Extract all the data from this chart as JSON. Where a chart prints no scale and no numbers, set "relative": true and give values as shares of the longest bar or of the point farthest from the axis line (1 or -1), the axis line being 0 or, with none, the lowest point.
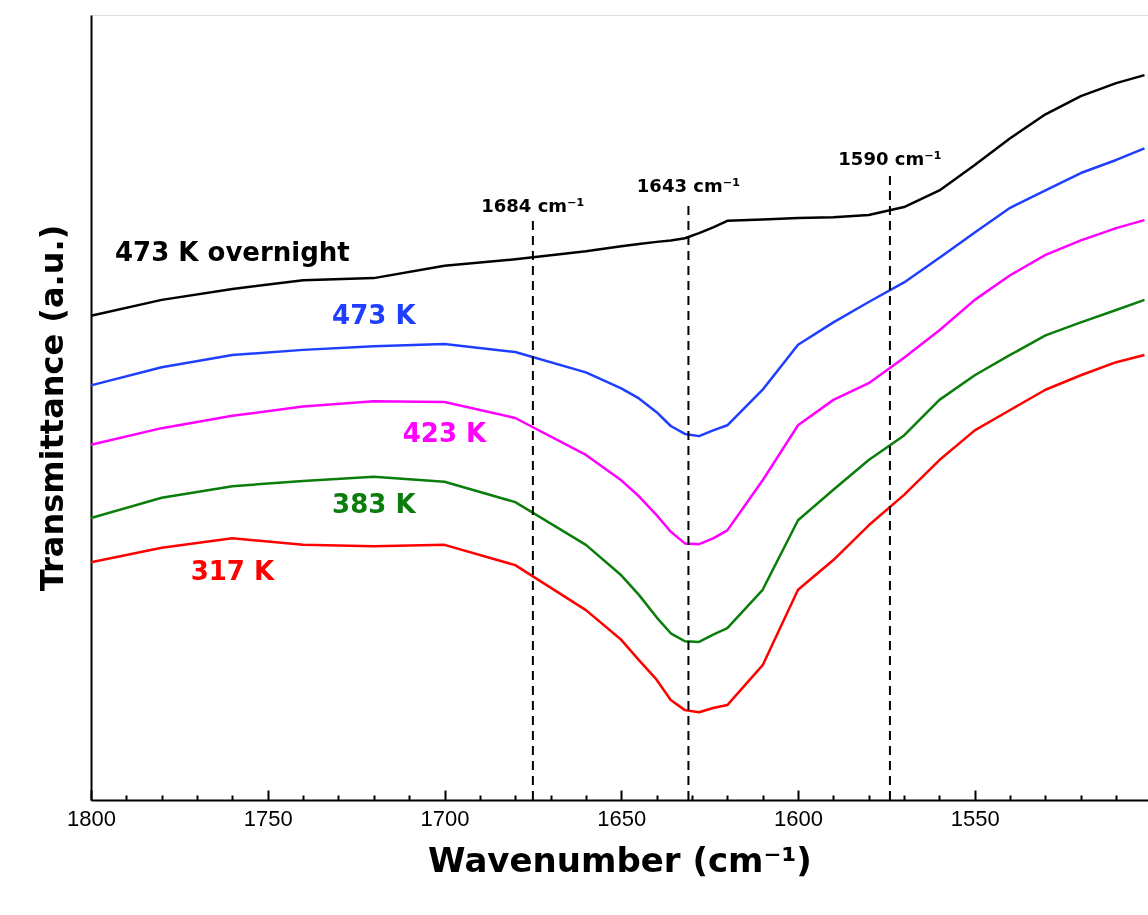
{
  "chart_data": {
    "type": "line",
    "relative": true,
    "xlabel": "Wavenumber (cm⁻¹)",
    "ylabel": "Transmittance (a.u.)",
    "x": [
      1800,
      1780,
      1760,
      1740,
      1720,
      1700,
      1680,
      1660,
      1650,
      1645,
      1640,
      1636,
      1632,
      1628,
      1624,
      1620,
      1610,
      1600,
      1590,
      1580,
      1570,
      1560,
      1550,
      1540,
      1530,
      1520,
      1510,
      1502
    ],
    "xlim": [
      1800,
      1501
    ],
    "xticks": [
      1800,
      {
        "value": 1790,
        "label": null
      },
      {
        "value": 1780,
        "label": null
      },
      {
        "value": 1770,
        "label": null
      },
      {
        "value": 1760,
        "label": null
      },
      1750,
      {
        "value": 1740,
        "label": null
      },
      {
        "value": 1730,
        "label": null
      },
      {
        "value": 1720,
        "label": null
      },
      {
        "value": 1710,
        "label": null
      },
      1700,
      {
        "value": 1690,
        "label": null
      },
      {
        "value": 1680,
        "label": null
      },
      {
        "value": 1670,
        "label": null
      },
      {
        "value": 1660,
        "label": null
      },
      1650,
      {
        "value": 1640,
        "label": null
      },
      {
        "value": 1630,
        "label": null
      },
      {
        "value": 1620,
        "label": null
      },
      {
        "value": 1610,
        "label": null
      },
      1600,
      {
        "value": 1590,
        "label": null
      },
      {
        "value": 1580,
        "label": null
      },
      {
        "value": 1570,
        "label": null
      },
      {
        "value": 1560,
        "label": null
      },
      1550,
      {
        "value": 1540,
        "label": null
      },
      {
        "value": 1530,
        "label": null
      },
      {
        "value": 1520,
        "label": null
      },
      {
        "value": 1510,
        "label": null
      }
    ],
    "line_style": "solid",
    "series": [
      {
        "name": "473 K overnight",
        "color": "#000000",
        "values": [
          0.668,
          0.69,
          0.705,
          0.717,
          0.72,
          0.737,
          0.746,
          0.757,
          0.764,
          0.767,
          0.77,
          0.772,
          0.775,
          0.782,
          0.79,
          0.799,
          0.801,
          0.803,
          0.804,
          0.807,
          0.818,
          0.841,
          0.876,
          0.913,
          0.946,
          0.971,
          0.989,
          1.0
        ]
      },
      {
        "name": "473 K",
        "color": "#1f3fff",
        "values": [
          0.572,
          0.597,
          0.614,
          0.621,
          0.626,
          0.629,
          0.618,
          0.59,
          0.568,
          0.554,
          0.535,
          0.516,
          0.505,
          0.502,
          0.51,
          0.517,
          0.566,
          0.628,
          0.659,
          0.687,
          0.714,
          0.748,
          0.783,
          0.817,
          0.841,
          0.865,
          0.883,
          0.899
        ]
      },
      {
        "name": "423 K",
        "color": "#ff00ff",
        "values": [
          0.49,
          0.513,
          0.53,
          0.543,
          0.55,
          0.549,
          0.527,
          0.476,
          0.441,
          0.419,
          0.393,
          0.37,
          0.354,
          0.353,
          0.361,
          0.372,
          0.441,
          0.517,
          0.552,
          0.575,
          0.61,
          0.648,
          0.69,
          0.724,
          0.752,
          0.772,
          0.789,
          0.8
        ]
      },
      {
        "name": "383 K",
        "color": "#0a7d0a",
        "values": [
          0.389,
          0.417,
          0.433,
          0.44,
          0.446,
          0.439,
          0.411,
          0.352,
          0.31,
          0.283,
          0.252,
          0.23,
          0.219,
          0.218,
          0.228,
          0.237,
          0.29,
          0.386,
          0.428,
          0.469,
          0.503,
          0.552,
          0.586,
          0.614,
          0.641,
          0.659,
          0.676,
          0.69
        ]
      },
      {
        "name": "317 K",
        "color": "#ff0000",
        "values": [
          0.328,
          0.348,
          0.361,
          0.352,
          0.35,
          0.352,
          0.324,
          0.262,
          0.221,
          0.193,
          0.166,
          0.138,
          0.124,
          0.121,
          0.127,
          0.131,
          0.186,
          0.29,
          0.331,
          0.379,
          0.421,
          0.469,
          0.51,
          0.538,
          0.566,
          0.586,
          0.604,
          0.614
        ]
      }
    ],
    "ref_lines": [
      {
        "axis": "x",
        "value": 1675,
        "label": "1684 cm⁻¹",
        "color": "#000000",
        "line_style": "dashed"
      },
      {
        "axis": "x",
        "value": 1631,
        "label": "1643 cm⁻¹",
        "color": "#000000",
        "line_style": "dashed"
      },
      {
        "axis": "x",
        "value": 1574,
        "label": "1590 cm⁻¹",
        "color": "#000000",
        "line_style": "dashed"
      }
    ]
  }
}
